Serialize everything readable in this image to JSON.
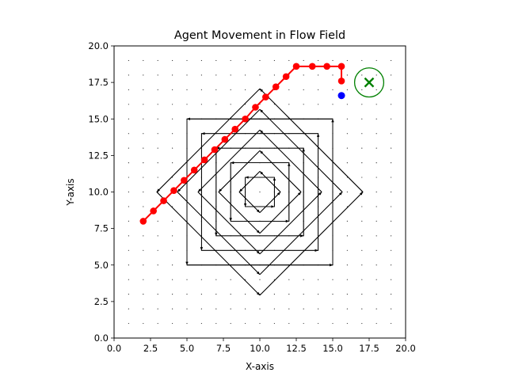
{
  "chart_data": {
    "type": "line",
    "title": "Agent Movement in Flow Field",
    "xlabel": "X-axis",
    "ylabel": "Y-axis",
    "xlim": [
      0,
      20
    ],
    "ylim": [
      0,
      20
    ],
    "xticks": [
      "0.0",
      "2.5",
      "5.0",
      "7.5",
      "10.0",
      "12.5",
      "15.0",
      "17.5",
      "20.0"
    ],
    "yticks": [
      "0.0",
      "2.5",
      "5.0",
      "7.5",
      "10.0",
      "12.5",
      "15.0",
      "17.5",
      "20.0"
    ],
    "grid": false,
    "legend": "none",
    "flow_field": {
      "center": [
        10,
        10
      ],
      "radii": [
        1,
        2,
        3,
        4,
        5
      ],
      "rotations_deg": [
        0,
        45,
        90,
        135
      ]
    },
    "background_dots": {
      "x_start": 1,
      "x_end": 19,
      "y_start": 1,
      "y_end": 19,
      "step": 1
    },
    "path": {
      "color": "#ff0000",
      "x": [
        2.0,
        2.7,
        3.4,
        4.1,
        4.8,
        5.5,
        6.2,
        6.9,
        7.6,
        8.3,
        9.0,
        9.7,
        10.4,
        11.1,
        11.8,
        12.5,
        13.6,
        14.6,
        15.6,
        15.6
      ],
      "y": [
        8.0,
        8.7,
        9.4,
        10.1,
        10.8,
        11.5,
        12.2,
        12.9,
        13.6,
        14.3,
        15.0,
        15.8,
        16.5,
        17.2,
        17.9,
        18.6,
        18.6,
        18.6,
        18.6,
        17.6
      ]
    },
    "current_position": {
      "x": 15.6,
      "y": 16.6,
      "color": "#0000ff"
    },
    "target": {
      "x": 17.5,
      "y": 17.5,
      "radius": 1.0,
      "color": "#008000"
    }
  }
}
